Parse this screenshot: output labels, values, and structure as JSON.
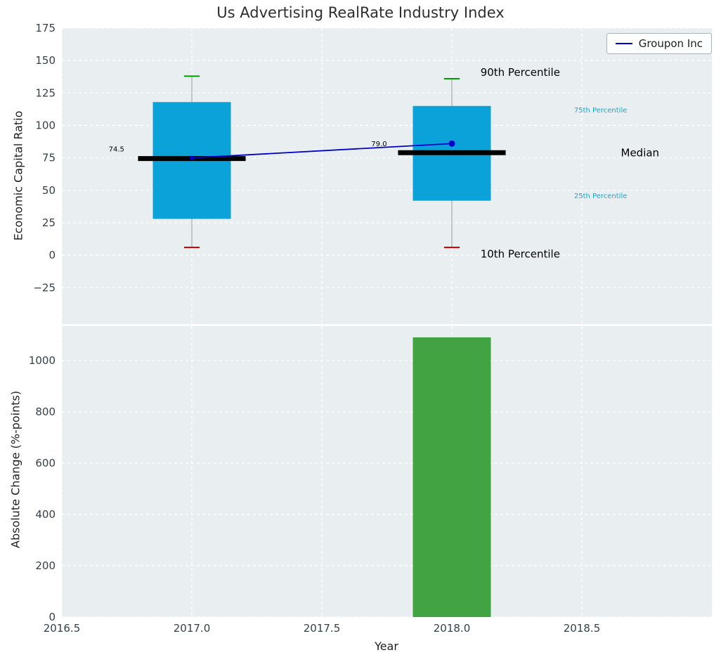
{
  "title": "Us Advertising RealRate Industry Index",
  "legend": {
    "label": "Groupon Inc"
  },
  "colors": {
    "panel_bg": "#e9eef0",
    "grid": "#ffffff",
    "tick_text": "#36404a",
    "box_fill": "#0aa2d8",
    "median_line": "#000000",
    "whisker": "#999999",
    "cap_high": "#00a000",
    "cap_low": "#e00000",
    "company_line": "#0000cc",
    "bar_fill": "#41a341",
    "percentile_label": "#1ba6ce"
  },
  "chart_data": [
    {
      "type": "box",
      "ylabel": "Economic Capital Ratio",
      "xlim": [
        2016.5,
        2019.0
      ],
      "ylim": [
        -53,
        175
      ],
      "yticks": [
        -25,
        0,
        25,
        50,
        75,
        100,
        125,
        150,
        175
      ],
      "ytick_labels": [
        "−25",
        "0",
        "25",
        "50",
        "75",
        "100",
        "125",
        "150",
        "175"
      ],
      "xticks": [
        2016.5,
        2017.0,
        2017.5,
        2018.0,
        2018.5
      ],
      "box_width": 0.3,
      "boxes": [
        {
          "x": 2017,
          "q1": 28,
          "q3": 118,
          "median": 74.5,
          "whisker_low": 6,
          "whisker_high": 138
        },
        {
          "x": 2018,
          "q1": 42,
          "q3": 115,
          "median": 79.0,
          "whisker_low": 6,
          "whisker_high": 136
        }
      ],
      "series": [
        {
          "name": "Groupon Inc",
          "x": [
            2017,
            2018
          ],
          "values": [
            75,
            86
          ]
        }
      ],
      "annotations": [
        {
          "text": "74.5",
          "x": 2016.68,
          "y": 82,
          "size": 10,
          "color": "#000000"
        },
        {
          "text": "79.0",
          "x": 2017.69,
          "y": 86,
          "size": 10,
          "color": "#000000"
        },
        {
          "text": "90th Percentile",
          "x": 2018.11,
          "y": 141,
          "size": 15,
          "color": "#000000"
        },
        {
          "text": "75th Percentile",
          "x": 2018.47,
          "y": 112,
          "size": 10,
          "color": "#1ba6ce"
        },
        {
          "text": "Median",
          "x": 2018.65,
          "y": 79,
          "size": 15,
          "color": "#000000"
        },
        {
          "text": "25th Percentile",
          "x": 2018.47,
          "y": 46,
          "size": 10,
          "color": "#1ba6ce"
        },
        {
          "text": "10th Percentile",
          "x": 2018.11,
          "y": 1,
          "size": 15,
          "color": "#000000"
        }
      ]
    },
    {
      "type": "bar",
      "xlabel": "Year",
      "ylabel": "Absolute Change (%-points)",
      "xlim": [
        2016.5,
        2019.0
      ],
      "ylim": [
        0,
        1134
      ],
      "yticks": [
        0,
        200,
        400,
        600,
        800,
        1000
      ],
      "ytick_labels": [
        "0",
        "200",
        "400",
        "600",
        "800",
        "1000"
      ],
      "xticks": [
        2016.5,
        2017.0,
        2017.5,
        2018.0,
        2018.5
      ],
      "xtick_labels": [
        "2016.5",
        "2017.0",
        "2017.5",
        "2018.0",
        "2018.5"
      ],
      "bar_width": 0.3,
      "bars": [
        {
          "x": 2018,
          "value": 1090
        }
      ]
    }
  ]
}
